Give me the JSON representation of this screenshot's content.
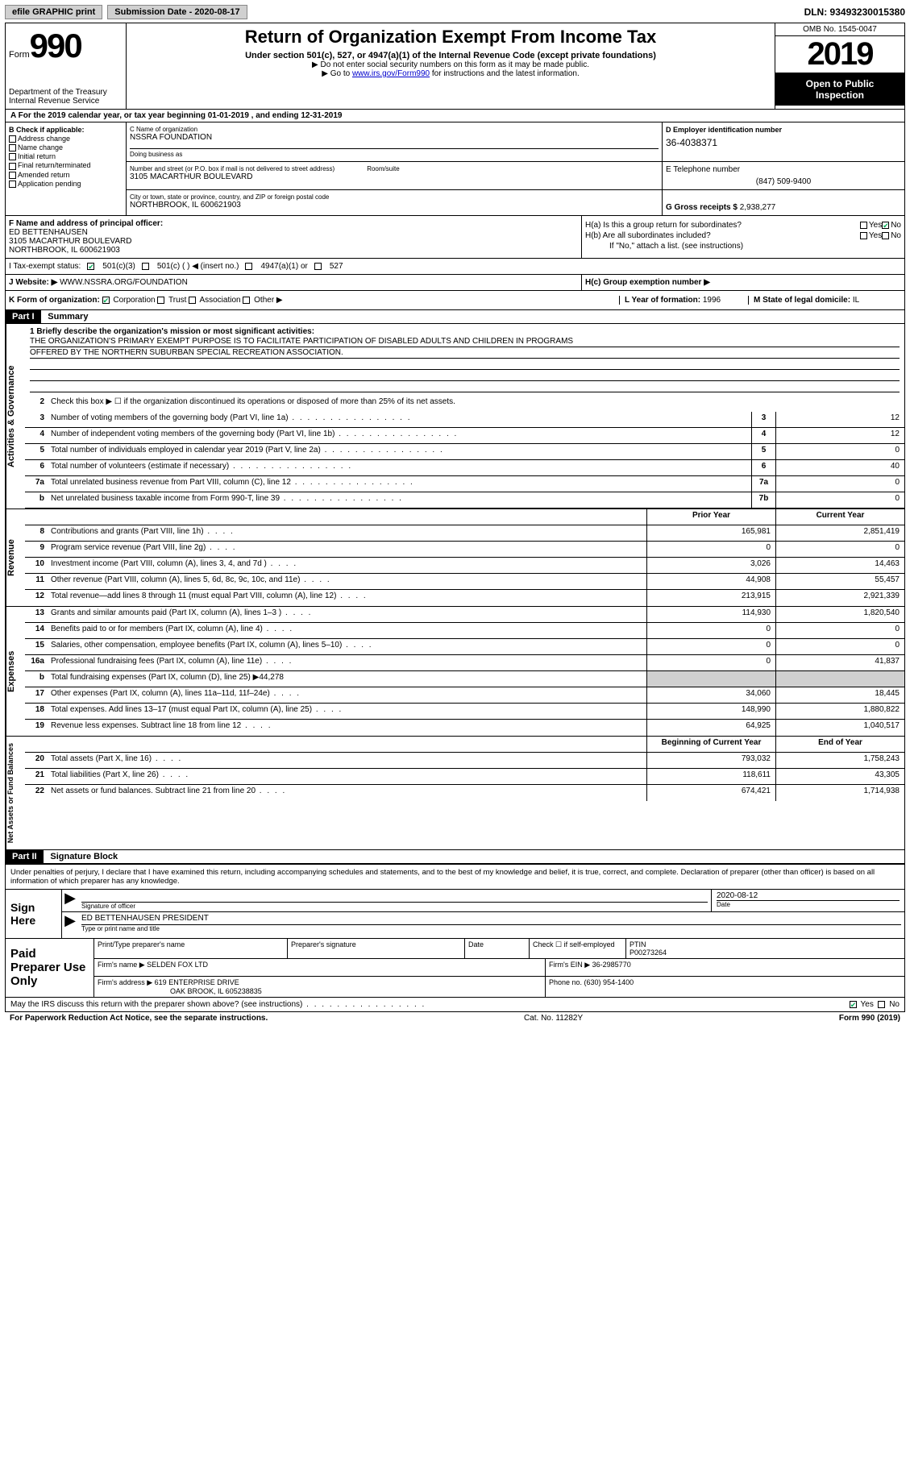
{
  "topbar": {
    "efile": "efile GRAPHIC print",
    "submission_label": "Submission Date - 2020-08-17",
    "dln": "DLN: 93493230015380"
  },
  "header": {
    "form_label": "Form",
    "form_num": "990",
    "dept1": "Department of the Treasury",
    "dept2": "Internal Revenue Service",
    "title": "Return of Organization Exempt From Income Tax",
    "sub1": "Under section 501(c), 527, or 4947(a)(1) of the Internal Revenue Code (except private foundations)",
    "sub2": "▶ Do not enter social security numbers on this form as it may be made public.",
    "sub3_pre": "▶ Go to ",
    "sub3_link": "www.irs.gov/Form990",
    "sub3_post": " for instructions and the latest information.",
    "omb": "OMB No. 1545-0047",
    "year": "2019",
    "open1": "Open to Public",
    "open2": "Inspection"
  },
  "tax_year": "A For the 2019 calendar year, or tax year beginning 01-01-2019    , and ending 12-31-2019",
  "col_b": {
    "title": "B Check if applicable:",
    "opts": [
      "Address change",
      "Name change",
      "Initial return",
      "Final return/terminated",
      "Amended return",
      "Application pending"
    ]
  },
  "entity": {
    "name_lbl": "C Name of organization",
    "name": "NSSRA FOUNDATION",
    "dba_lbl": "Doing business as",
    "addr_lbl": "Number and street (or P.O. box if mail is not delivered to street address)",
    "room_lbl": "Room/suite",
    "addr": "3105 MACARTHUR BOULEVARD",
    "city_lbl": "City or town, state or province, country, and ZIP or foreign postal code",
    "city": "NORTHBROOK, IL  600621903",
    "ein_lbl": "D Employer identification number",
    "ein": "36-4038371",
    "phone_lbl": "E Telephone number",
    "phone": "(847) 509-9400",
    "gross_lbl": "G Gross receipts $ ",
    "gross": "2,938,277"
  },
  "f_box": {
    "lbl": "F  Name and address of principal officer:",
    "name": "ED BETTENHAUSEN",
    "addr1": "3105 MACARTHUR BOULEVARD",
    "addr2": "NORTHBROOK, IL  600621903"
  },
  "h_box": {
    "ha_q": "H(a)  Is this a group return for subordinates?",
    "hb_q": "H(b)  Are all subordinates included?",
    "hb_note": "If \"No,\" attach a list. (see instructions)",
    "hc_q": "H(c)  Group exemption number ▶",
    "yes": "Yes",
    "no": "No"
  },
  "status_row": {
    "lbl": "I   Tax-exempt status:",
    "c3": "501(c)(3)",
    "c": "501(c) (   ) ◀ (insert no.)",
    "a1": "4947(a)(1) or",
    "s527": "527"
  },
  "website": {
    "lbl": "J   Website: ▶",
    "val": "WWW.NSSRA.ORG/FOUNDATION"
  },
  "k_row": {
    "lbl": "K Form of organization:",
    "corp": "Corporation",
    "trust": "Trust",
    "assoc": "Association",
    "other": "Other ▶"
  },
  "l_box": {
    "lbl": "L Year of formation: ",
    "val": "1996"
  },
  "m_box": {
    "lbl": "M State of legal domicile: ",
    "val": "IL"
  },
  "part1": {
    "hdr": "Part I",
    "title": "Summary",
    "line1_lbl": "1  Briefly describe the organization's mission or most significant activities:",
    "mission1": "THE ORGANIZATION'S PRIMARY EXEMPT PURPOSE IS TO FACILITATE PARTICIPATION OF DISABLED ADULTS AND CHILDREN IN PROGRAMS",
    "mission2": "OFFERED BY THE NORTHERN SUBURBAN SPECIAL RECREATION ASSOCIATION.",
    "line2": "Check this box ▶ ☐  if the organization discontinued its operations or disposed of more than 25% of its net assets.",
    "side_ag": "Activities & Governance",
    "side_rev": "Revenue",
    "side_exp": "Expenses",
    "side_net": "Net Assets or Fund Balances",
    "lines_ag": [
      {
        "n": "3",
        "d": "Number of voting members of the governing body (Part VI, line 1a)",
        "c": "3",
        "v": "12"
      },
      {
        "n": "4",
        "d": "Number of independent voting members of the governing body (Part VI, line 1b)",
        "c": "4",
        "v": "12"
      },
      {
        "n": "5",
        "d": "Total number of individuals employed in calendar year 2019 (Part V, line 2a)",
        "c": "5",
        "v": "0"
      },
      {
        "n": "6",
        "d": "Total number of volunteers (estimate if necessary)",
        "c": "6",
        "v": "40"
      },
      {
        "n": "7a",
        "d": "Total unrelated business revenue from Part VIII, column (C), line 12",
        "c": "7a",
        "v": "0"
      },
      {
        "n": "b",
        "d": "Net unrelated business taxable income from Form 990-T, line 39",
        "c": "7b",
        "v": "0"
      }
    ],
    "col_prior": "Prior Year",
    "col_current": "Current Year",
    "lines_rev": [
      {
        "n": "8",
        "d": "Contributions and grants (Part VIII, line 1h)",
        "p": "165,981",
        "c": "2,851,419"
      },
      {
        "n": "9",
        "d": "Program service revenue (Part VIII, line 2g)",
        "p": "0",
        "c": "0"
      },
      {
        "n": "10",
        "d": "Investment income (Part VIII, column (A), lines 3, 4, and 7d )",
        "p": "3,026",
        "c": "14,463"
      },
      {
        "n": "11",
        "d": "Other revenue (Part VIII, column (A), lines 5, 6d, 8c, 9c, 10c, and 11e)",
        "p": "44,908",
        "c": "55,457"
      },
      {
        "n": "12",
        "d": "Total revenue—add lines 8 through 11 (must equal Part VIII, column (A), line 12)",
        "p": "213,915",
        "c": "2,921,339"
      }
    ],
    "lines_exp": [
      {
        "n": "13",
        "d": "Grants and similar amounts paid (Part IX, column (A), lines 1–3 )",
        "p": "114,930",
        "c": "1,820,540"
      },
      {
        "n": "14",
        "d": "Benefits paid to or for members (Part IX, column (A), line 4)",
        "p": "0",
        "c": "0"
      },
      {
        "n": "15",
        "d": "Salaries, other compensation, employee benefits (Part IX, column (A), lines 5–10)",
        "p": "0",
        "c": "0"
      },
      {
        "n": "16a",
        "d": "Professional fundraising fees (Part IX, column (A), line 11e)",
        "p": "0",
        "c": "41,837"
      }
    ],
    "line16b": {
      "n": "b",
      "d": "Total fundraising expenses (Part IX, column (D), line 25) ▶",
      "v": "44,278"
    },
    "lines_exp2": [
      {
        "n": "17",
        "d": "Other expenses (Part IX, column (A), lines 11a–11d, 11f–24e)",
        "p": "34,060",
        "c": "18,445"
      },
      {
        "n": "18",
        "d": "Total expenses. Add lines 13–17 (must equal Part IX, column (A), line 25)",
        "p": "148,990",
        "c": "1,880,822"
      },
      {
        "n": "19",
        "d": "Revenue less expenses. Subtract line 18 from line 12",
        "p": "64,925",
        "c": "1,040,517"
      }
    ],
    "col_begin": "Beginning of Current Year",
    "col_end": "End of Year",
    "lines_net": [
      {
        "n": "20",
        "d": "Total assets (Part X, line 16)",
        "p": "793,032",
        "c": "1,758,243"
      },
      {
        "n": "21",
        "d": "Total liabilities (Part X, line 26)",
        "p": "118,611",
        "c": "43,305"
      },
      {
        "n": "22",
        "d": "Net assets or fund balances. Subtract line 21 from line 20",
        "p": "674,421",
        "c": "1,714,938"
      }
    ]
  },
  "part2": {
    "hdr": "Part II",
    "title": "Signature Block",
    "disclaimer": "Under penalties of perjury, I declare that I have examined this return, including accompanying schedules and statements, and to the best of my knowledge and belief, it is true, correct, and complete. Declaration of preparer (other than officer) is based on all information of which preparer has any knowledge.",
    "sign_here": "Sign Here",
    "sig_officer_lbl": "Signature of officer",
    "date_lbl": "Date",
    "sig_date": "2020-08-12",
    "officer_name": "ED BETTENHAUSEN  PRESIDENT",
    "officer_name_lbl": "Type or print name and title",
    "paid_prep": "Paid Preparer Use Only",
    "prep_name_lbl": "Print/Type preparer's name",
    "prep_sig_lbl": "Preparer's signature",
    "prep_date_lbl": "Date",
    "self_emp_lbl": "Check ☐ if self-employed",
    "ptin_lbl": "PTIN",
    "ptin": "P00273264",
    "firm_name_lbl": "Firm's name     ▶",
    "firm_name": "SELDEN FOX LTD",
    "firm_ein_lbl": "Firm's EIN ▶",
    "firm_ein": "36-2985770",
    "firm_addr_lbl": "Firm's address ▶",
    "firm_addr1": "619 ENTERPRISE DRIVE",
    "firm_addr2": "OAK BROOK, IL  605238835",
    "firm_phone_lbl": "Phone no. ",
    "firm_phone": "(630) 954-1400",
    "discuss": "May the IRS discuss this return with the preparer shown above? (see instructions)",
    "discuss_yes": "Yes",
    "discuss_no": "No"
  },
  "footer": {
    "left": "For Paperwork Reduction Act Notice, see the separate instructions.",
    "mid": "Cat. No. 11282Y",
    "right": "Form 990 (2019)"
  }
}
